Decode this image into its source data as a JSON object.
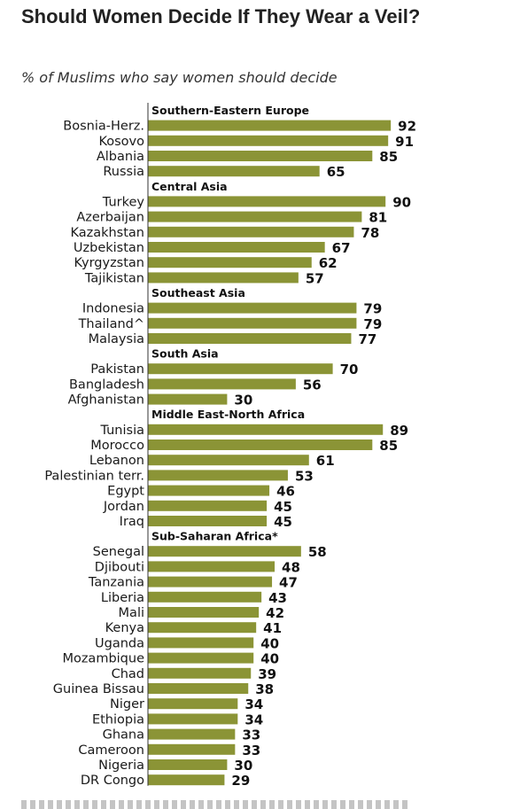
{
  "title": "Should Women Decide If They Wear a Veil?",
  "subtitle": "% of Muslims who say women should decide",
  "chart_data": {
    "type": "bar",
    "orientation": "horizontal",
    "title": "Should Women Decide If They Wear a Veil?",
    "subtitle": "% of Muslims who say women should decide",
    "xlim": [
      0,
      100
    ],
    "bar_color": "#8b9436",
    "groups": [
      {
        "name": "Southern-Eastern  Europe",
        "items": [
          {
            "label": "Bosnia-Herz.",
            "value": 92
          },
          {
            "label": "Kosovo",
            "value": 91
          },
          {
            "label": "Albania",
            "value": 85
          },
          {
            "label": "Russia",
            "value": 65
          }
        ]
      },
      {
        "name": "Central Asia",
        "items": [
          {
            "label": "Turkey",
            "value": 90
          },
          {
            "label": "Azerbaijan",
            "value": 81
          },
          {
            "label": "Kazakhstan",
            "value": 78
          },
          {
            "label": "Uzbekistan",
            "value": 67
          },
          {
            "label": "Kyrgyzstan",
            "value": 62
          },
          {
            "label": "Tajikistan",
            "value": 57
          }
        ]
      },
      {
        "name": "Southeast Asia",
        "items": [
          {
            "label": "Indonesia",
            "value": 79
          },
          {
            "label": "Thailand^",
            "value": 79
          },
          {
            "label": "Malaysia",
            "value": 77
          }
        ]
      },
      {
        "name": "South Asia",
        "items": [
          {
            "label": "Pakistan",
            "value": 70
          },
          {
            "label": "Bangladesh",
            "value": 56
          },
          {
            "label": "Afghanistan",
            "value": 30
          }
        ]
      },
      {
        "name": "Middle East-North Africa",
        "items": [
          {
            "label": "Tunisia",
            "value": 89
          },
          {
            "label": "Morocco",
            "value": 85
          },
          {
            "label": "Lebanon",
            "value": 61
          },
          {
            "label": "Palestinian terr.",
            "value": 53
          },
          {
            "label": "Egypt",
            "value": 46
          },
          {
            "label": "Jordan",
            "value": 45
          },
          {
            "label": "Iraq",
            "value": 45
          }
        ]
      },
      {
        "name": "Sub-Saharan  Africa*",
        "items": [
          {
            "label": "Senegal",
            "value": 58
          },
          {
            "label": "Djibouti",
            "value": 48
          },
          {
            "label": "Tanzania",
            "value": 47
          },
          {
            "label": "Liberia",
            "value": 43
          },
          {
            "label": "Mali",
            "value": 42
          },
          {
            "label": "Kenya",
            "value": 41
          },
          {
            "label": "Uganda",
            "value": 40
          },
          {
            "label": "Mozambique",
            "value": 40
          },
          {
            "label": "Chad",
            "value": 39
          },
          {
            "label": "Guinea Bissau",
            "value": 38
          },
          {
            "label": "Niger",
            "value": 34
          },
          {
            "label": "Ethiopia",
            "value": 34
          },
          {
            "label": "Ghana",
            "value": 33
          },
          {
            "label": "Cameroon",
            "value": 33
          },
          {
            "label": "Nigeria",
            "value": 30
          },
          {
            "label": "DR Congo",
            "value": 29
          }
        ]
      }
    ]
  }
}
